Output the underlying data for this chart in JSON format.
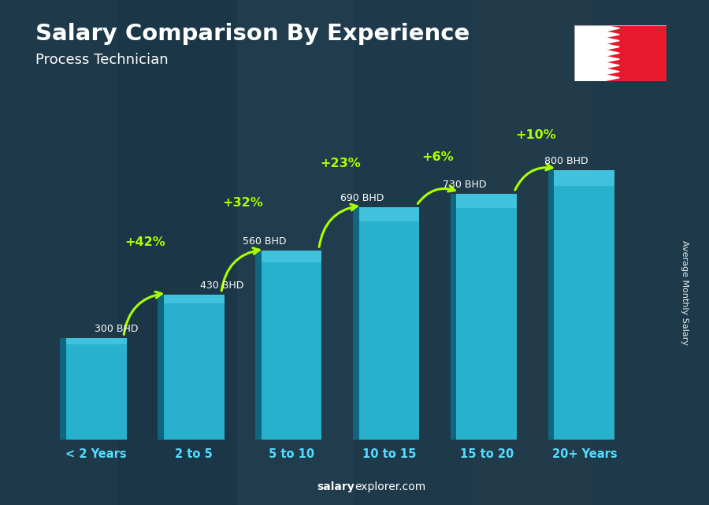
{
  "categories": [
    "< 2 Years",
    "2 to 5",
    "5 to 10",
    "10 to 15",
    "15 to 20",
    "20+ Years"
  ],
  "values": [
    300,
    430,
    560,
    690,
    730,
    800
  ],
  "bar_color": "#29b8d4",
  "bar_edge_color": "#1a8aaa",
  "bar_dark_color": "#0d6e8a",
  "background_color": "#1e3a4a",
  "title": "Salary Comparison By Experience",
  "subtitle": "Process Technician",
  "ylabel": "Average Monthly Salary",
  "source_bold": "salary",
  "source_rest": "explorer.com",
  "salary_labels": [
    "300 BHD",
    "430 BHD",
    "560 BHD",
    "690 BHD",
    "730 BHD",
    "800 BHD"
  ],
  "pct_labels": [
    "+42%",
    "+32%",
    "+23%",
    "+6%",
    "+10%"
  ],
  "pct_color": "#aaff00",
  "title_color": "#ffffff",
  "subtitle_color": "#ffffff",
  "tick_color": "#55ddff",
  "ylim_max": 900,
  "figsize": [
    9.0,
    6.41
  ],
  "dpi": 100
}
